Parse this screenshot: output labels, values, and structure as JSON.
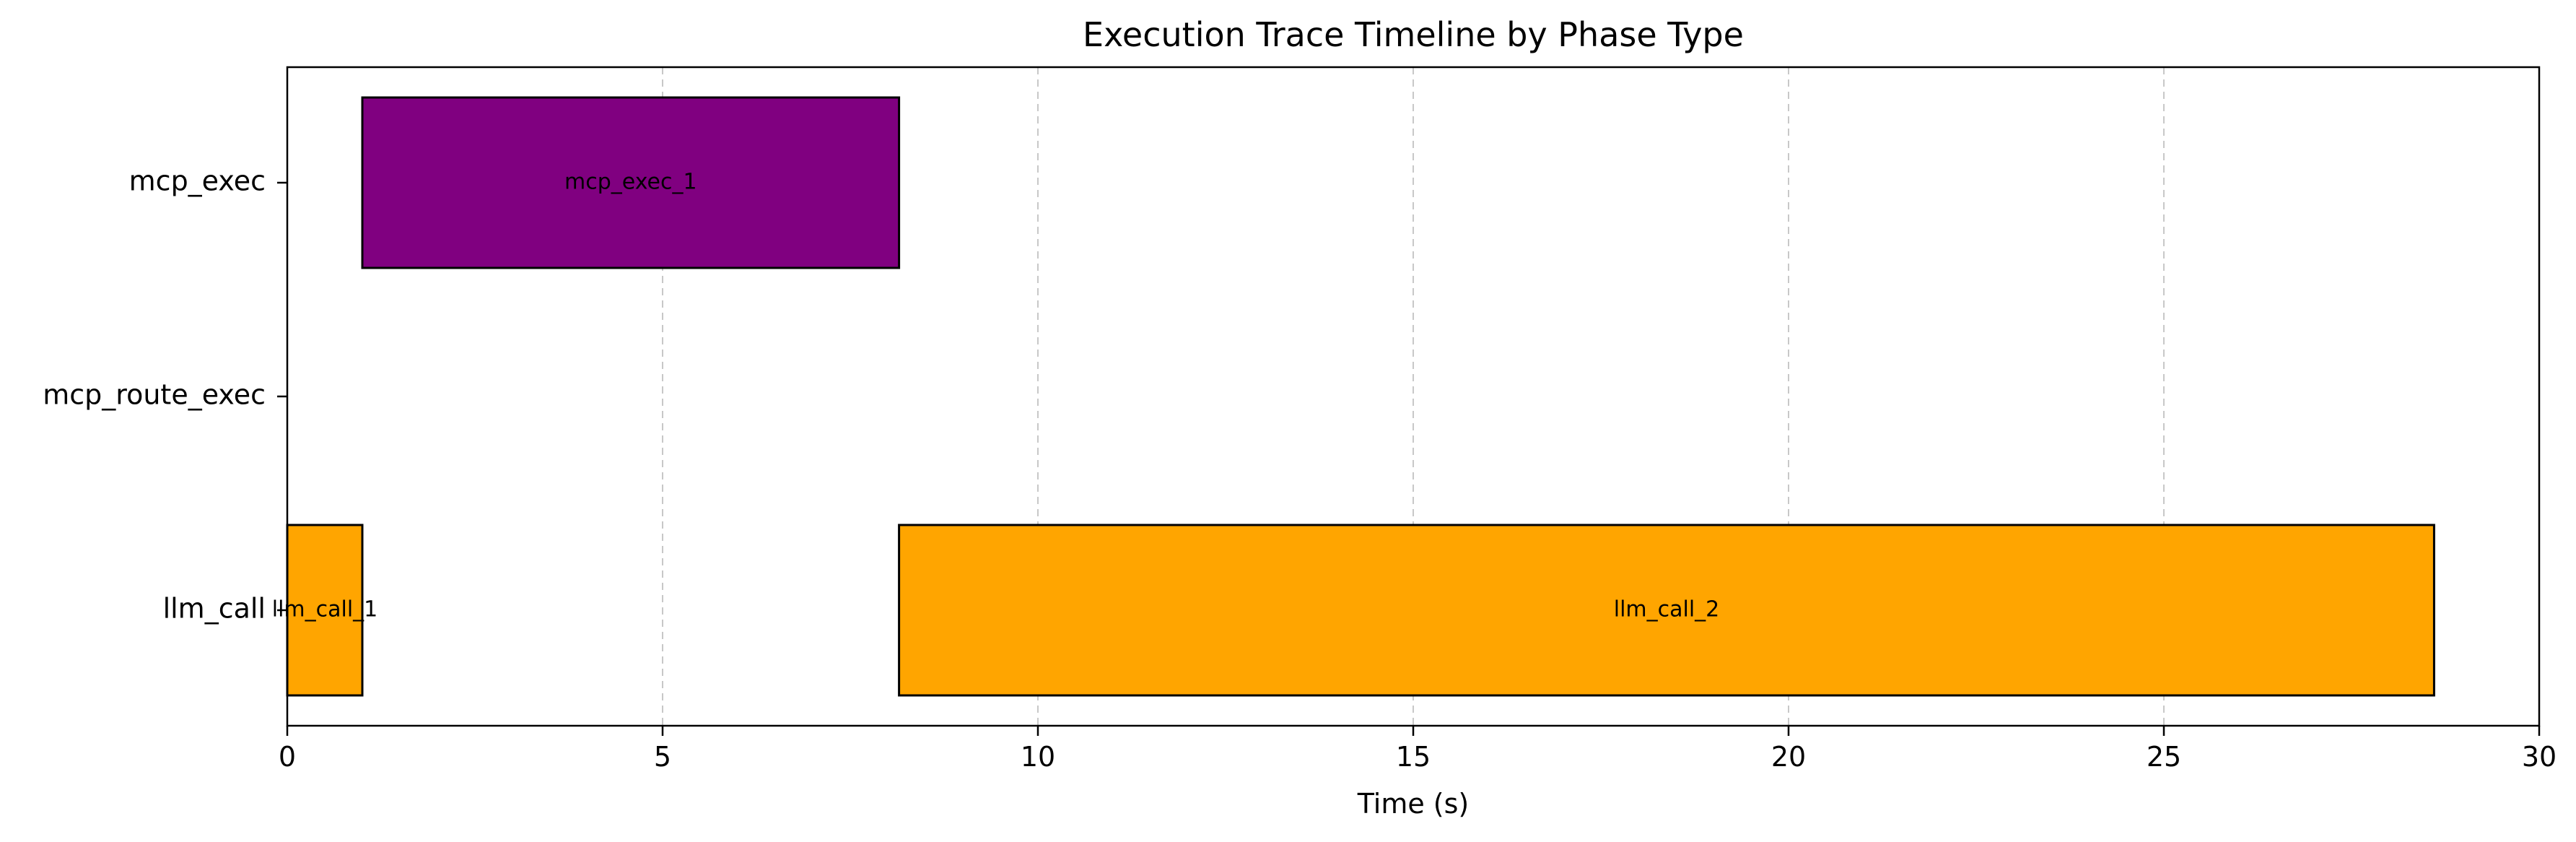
{
  "chart_data": {
    "type": "gantt",
    "title": "Execution Trace Timeline by Phase Type",
    "xlabel": "Time (s)",
    "ylabel": "",
    "xlim": [
      0,
      30
    ],
    "xticks": [
      0,
      5,
      10,
      15,
      20,
      25,
      30
    ],
    "categories": [
      "llm_call",
      "mcp_route_exec",
      "mcp_exec"
    ],
    "grid": "x-dashed",
    "colors": {
      "llm_call": "#FFA500",
      "mcp_exec": "#800080"
    },
    "bars": [
      {
        "category": "llm_call",
        "label": "llm_call_1",
        "start": 0.0,
        "end": 1.0
      },
      {
        "category": "mcp_exec",
        "label": "mcp_exec_1",
        "start": 1.0,
        "end": 8.15
      },
      {
        "category": "llm_call",
        "label": "llm_call_2",
        "start": 8.15,
        "end": 28.6
      }
    ]
  }
}
